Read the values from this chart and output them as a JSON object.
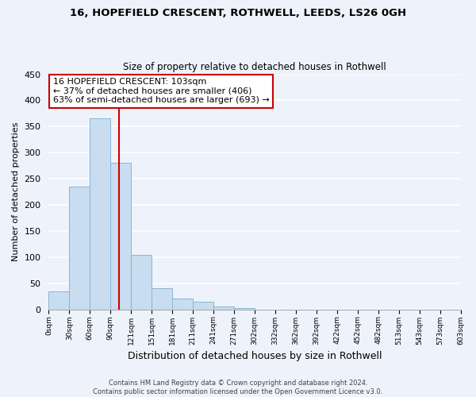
{
  "title1": "16, HOPEFIELD CRESCENT, ROTHWELL, LEEDS, LS26 0GH",
  "title2": "Size of property relative to detached houses in Rothwell",
  "xlabel": "Distribution of detached houses by size in Rothwell",
  "ylabel": "Number of detached properties",
  "bar_color": "#c8ddf0",
  "bar_edge_color": "#8ab4d4",
  "tick_labels": [
    "0sqm",
    "30sqm",
    "60sqm",
    "90sqm",
    "121sqm",
    "151sqm",
    "181sqm",
    "211sqm",
    "241sqm",
    "271sqm",
    "302sqm",
    "332sqm",
    "362sqm",
    "392sqm",
    "422sqm",
    "452sqm",
    "482sqm",
    "513sqm",
    "543sqm",
    "573sqm",
    "603sqm"
  ],
  "bar_values": [
    35,
    235,
    365,
    280,
    105,
    40,
    20,
    15,
    5,
    2,
    0,
    0,
    0,
    0,
    0,
    0,
    0,
    0,
    0,
    0
  ],
  "ylim": [
    0,
    450
  ],
  "yticks": [
    0,
    50,
    100,
    150,
    200,
    250,
    300,
    350,
    400,
    450
  ],
  "annotation_text": "16 HOPEFIELD CRESCENT: 103sqm\n← 37% of detached houses are smaller (406)\n63% of semi-detached houses are larger (693) →",
  "annotation_box_color": "white",
  "annotation_box_edge": "#cc0000",
  "property_line_color": "#cc0000",
  "footer_line1": "Contains HM Land Registry data © Crown copyright and database right 2024.",
  "footer_line2": "Contains public sector information licensed under the Open Government Licence v3.0.",
  "background_color": "#eef2fb",
  "grid_color": "white"
}
